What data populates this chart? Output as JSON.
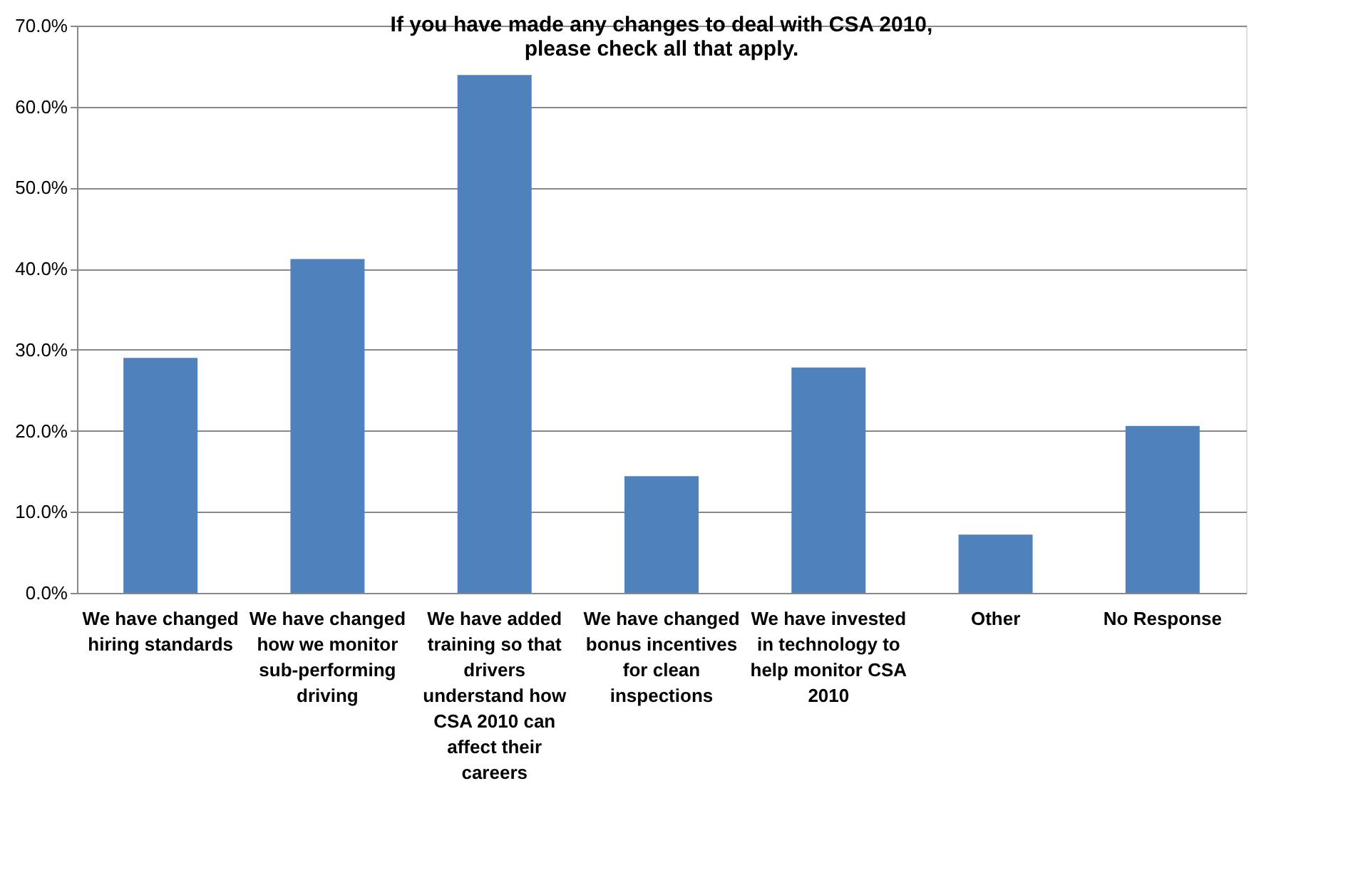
{
  "chart_data": {
    "type": "bar",
    "title": "If you have made any changes to deal with CSA 2010, please check all that apply.",
    "categories": [
      "We have changed hiring standards",
      "We have changed how we monitor sub-performing driving",
      "We have added training so that drivers understand how CSA 2010 can affect their careers",
      "We have changed bonus incentives for clean inspections",
      "We have invested in technology to help monitor CSA 2010",
      "Other",
      "No Response"
    ],
    "values": [
      29.0,
      41.2,
      63.9,
      14.4,
      27.8,
      7.2,
      20.6
    ],
    "color": "#4f81bd",
    "ylim": [
      0,
      70
    ],
    "yticks": [
      {
        "value": 0,
        "label": "0.0%"
      },
      {
        "value": 10,
        "label": "10.0%"
      },
      {
        "value": 20,
        "label": "20.0%"
      },
      {
        "value": 30,
        "label": "30.0%"
      },
      {
        "value": 40,
        "label": "40.0%"
      },
      {
        "value": 50,
        "label": "50.0%"
      },
      {
        "value": 60,
        "label": "60.0%"
      },
      {
        "value": 70,
        "label": "70.0%"
      }
    ],
    "grid": "y"
  }
}
